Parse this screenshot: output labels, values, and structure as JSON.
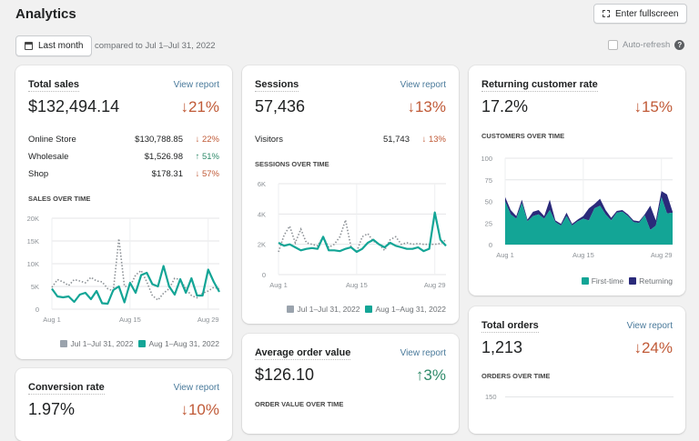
{
  "header": {
    "title": "Analytics",
    "fullscreen_label": "Enter fullscreen",
    "date_button": "Last month",
    "compare_text": "compared to Jul 1–Jul 31, 2022",
    "auto_refresh": "Auto-refresh",
    "auto_refresh_checked": false
  },
  "colors": {
    "current": "#13a596",
    "previous": "#8c9196",
    "returning": "#2a2a7a",
    "down": "#c05a37",
    "up": "#2f8a6a"
  },
  "legend": {
    "previous": "Jul 1–Jul 31, 2022",
    "current": "Aug 1–Aug 31, 2022",
    "first_time": "First-time",
    "returning": "Returning"
  },
  "total_sales": {
    "title": "Total sales",
    "view": "View report",
    "value": "$132,494.14",
    "change": "↓21%",
    "rows": [
      {
        "label": "Online Store",
        "value": "$130,788.85",
        "change": "↓ 22%",
        "dir": "down"
      },
      {
        "label": "Wholesale",
        "value": "$1,526.98",
        "change": "↑ 51%",
        "dir": "up"
      },
      {
        "label": "Shop",
        "value": "$178.31",
        "change": "↓ 57%",
        "dir": "down"
      }
    ],
    "chart_title": "SALES OVER TIME"
  },
  "sessions": {
    "title": "Sessions",
    "view": "View report",
    "value": "57,436",
    "change": "↓13%",
    "rows": [
      {
        "label": "Visitors",
        "value": "51,743",
        "change": "↓ 13%",
        "dir": "down"
      }
    ],
    "chart_title": "SESSIONS OVER TIME"
  },
  "returning": {
    "title": "Returning customer rate",
    "value": "17.2%",
    "change": "↓15%",
    "chart_title": "CUSTOMERS OVER TIME"
  },
  "conversion": {
    "title": "Conversion rate",
    "view": "View report",
    "value": "1.97%",
    "change": "↓10%"
  },
  "aov": {
    "title": "Average order value",
    "view": "View report",
    "value": "$126.10",
    "change": "↑3%",
    "chart_title": "ORDER VALUE OVER TIME"
  },
  "orders": {
    "title": "Total orders",
    "view": "View report",
    "value": "1,213",
    "change": "↓24%",
    "chart_title": "ORDERS OVER TIME",
    "y_tick": "150"
  },
  "chart_data": [
    {
      "type": "line",
      "id": "sales",
      "ylim": [
        0,
        20000
      ],
      "yticks": [
        "0",
        "5K",
        "10K",
        "15K",
        "20K"
      ],
      "yvals": [
        0,
        5000,
        10000,
        15000,
        20000
      ],
      "xticks": [
        "Aug 1",
        "Aug 15",
        "Aug 29"
      ],
      "xidx": [
        0,
        14,
        28
      ],
      "series": [
        {
          "name": "Jul 1–Jul 31, 2022",
          "style": "dotted",
          "values": [
            4800,
            6500,
            6000,
            5200,
            6500,
            6200,
            5800,
            7000,
            6200,
            6000,
            4500,
            4000,
            15500,
            5000,
            5000,
            7500,
            8500,
            6000,
            3000,
            2000,
            3500,
            4500,
            6800,
            6500,
            4500,
            3000,
            2500,
            3500,
            4000,
            4800,
            4500
          ]
        },
        {
          "name": "Aug 1–Aug 31, 2022",
          "style": "solid",
          "values": [
            4500,
            2800,
            2600,
            2800,
            1600,
            3200,
            3600,
            2200,
            4000,
            1300,
            1200,
            4200,
            5000,
            1500,
            5800,
            3600,
            7500,
            8000,
            5500,
            5000,
            9500,
            5000,
            3200,
            6600,
            3600,
            6800,
            3000,
            3000,
            8700,
            6000,
            3800
          ]
        }
      ]
    },
    {
      "type": "line",
      "id": "sessions",
      "ylim": [
        0,
        6000
      ],
      "yticks": [
        "0",
        "2K",
        "4K",
        "6K"
      ],
      "yvals": [
        0,
        2000,
        4000,
        6000
      ],
      "xticks": [
        "Aug 1",
        "Aug 15",
        "Aug 29"
      ],
      "xidx": [
        0,
        14,
        28
      ],
      "series": [
        {
          "name": "Jul 1–Jul 31, 2022",
          "style": "dotted",
          "values": [
            1500,
            2600,
            3200,
            2100,
            3000,
            2100,
            2000,
            1900,
            2500,
            1800,
            2000,
            2500,
            3600,
            1800,
            1500,
            2500,
            2700,
            2200,
            2000,
            1600,
            2300,
            2500,
            2000,
            2100,
            2000,
            2050,
            2000,
            2000,
            2000,
            2050,
            2300
          ]
        },
        {
          "name": "Aug 1–Aug 31, 2022",
          "style": "solid",
          "values": [
            2100,
            1900,
            2000,
            1800,
            1600,
            1700,
            1750,
            1700,
            2500,
            1600,
            1600,
            1550,
            1700,
            1800,
            1500,
            1700,
            2100,
            2300,
            2000,
            1800,
            2100,
            1900,
            1800,
            1700,
            1700,
            1800,
            1550,
            1700,
            4100,
            2300,
            1900
          ]
        }
      ]
    },
    {
      "type": "area",
      "id": "customers",
      "stacked": true,
      "ylim": [
        0,
        100
      ],
      "yticks": [
        "0",
        "25",
        "50",
        "75",
        "100"
      ],
      "yvals": [
        0,
        25,
        50,
        75,
        100
      ],
      "xticks": [
        "Aug 1",
        "Aug 15",
        "Aug 29"
      ],
      "xidx": [
        0,
        14,
        28
      ],
      "series": [
        {
          "name": "First-time",
          "values": [
            50,
            35,
            30,
            48,
            27,
            33,
            35,
            30,
            40,
            26,
            22,
            33,
            22,
            27,
            30,
            28,
            42,
            45,
            35,
            28,
            37,
            38,
            33,
            26,
            25,
            34,
            17,
            22,
            55,
            36,
            37
          ]
        },
        {
          "name": "Returning",
          "values": [
            5,
            5,
            3,
            4,
            2,
            5,
            5,
            3,
            12,
            2,
            2,
            4,
            2,
            2,
            3,
            14,
            5,
            8,
            5,
            3,
            2,
            2,
            2,
            2,
            2,
            1,
            28,
            6,
            7,
            22,
            1
          ]
        }
      ]
    }
  ]
}
